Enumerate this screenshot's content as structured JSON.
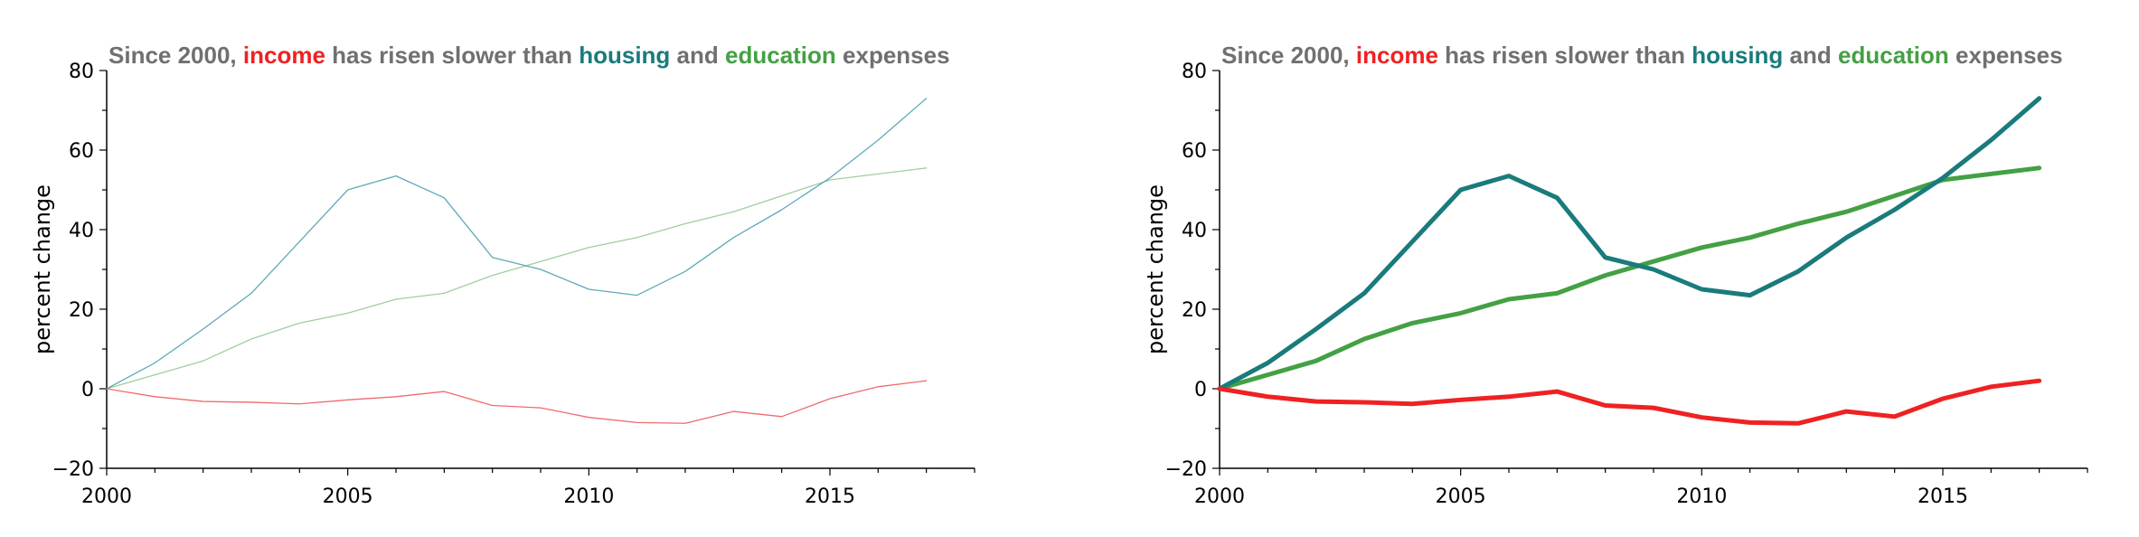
{
  "colors": {
    "title_gray": "#707070",
    "income": "#ee2222",
    "housing": "#1a7b7b",
    "education": "#44a044",
    "housing_thin": "#5fa9b9",
    "education_thin": "#9fcf9f",
    "income_thin": "#ef6b6b"
  },
  "chart_data": [
    {
      "type": "line",
      "title": {
        "prefix": "Since 2000,",
        "income": "income",
        "mid1": "has risen slower than",
        "housing": "housing",
        "mid2": "and",
        "education": "education",
        "suffix": "expenses"
      },
      "xlabel": "",
      "ylabel": "percent change",
      "xlim": [
        2000,
        2018
      ],
      "ylim": [
        -20,
        80
      ],
      "xticks": [
        2000,
        2005,
        2010,
        2015
      ],
      "yticks": [
        -20,
        0,
        20,
        40,
        60,
        80
      ],
      "ytick_labels": [
        "−20",
        "0",
        "20",
        "40",
        "60",
        "80"
      ],
      "legend": "none",
      "line_style": "thin",
      "x": [
        2000,
        2001,
        2002,
        2003,
        2004,
        2005,
        2006,
        2007,
        2008,
        2009,
        2010,
        2011,
        2012,
        2013,
        2014,
        2015,
        2016,
        2017
      ],
      "series": [
        {
          "name": "housing",
          "values": [
            0,
            6.5,
            15,
            24,
            37,
            50,
            53.5,
            48,
            33,
            30,
            25,
            23.5,
            29.5,
            38,
            45,
            53,
            62.5,
            73
          ]
        },
        {
          "name": "education",
          "values": [
            0,
            3.5,
            7,
            12.5,
            16.5,
            19,
            22.5,
            24,
            28.5,
            32,
            35.5,
            38,
            41.5,
            44.5,
            48.5,
            52.5,
            54,
            55.5
          ]
        },
        {
          "name": "income",
          "values": [
            0,
            -2,
            -3.2,
            -3.4,
            -3.8,
            -2.8,
            -2,
            -0.7,
            -4.2,
            -4.8,
            -7.2,
            -8.5,
            -8.7,
            -5.7,
            -7,
            -2.5,
            0.5,
            2
          ]
        }
      ]
    },
    {
      "type": "line",
      "title": {
        "prefix": "Since 2000,",
        "income": "income",
        "mid1": "has risen slower than",
        "housing": "housing",
        "mid2": "and",
        "education": "education",
        "suffix": "expenses"
      },
      "xlabel": "",
      "ylabel": "percent change",
      "xlim": [
        2000,
        2018
      ],
      "ylim": [
        -20,
        80
      ],
      "xticks": [
        2000,
        2005,
        2010,
        2015
      ],
      "yticks": [
        -20,
        0,
        20,
        40,
        60,
        80
      ],
      "ytick_labels": [
        "−20",
        "0",
        "20",
        "40",
        "60",
        "80"
      ],
      "legend": "none",
      "line_style": "thick",
      "x": [
        2000,
        2001,
        2002,
        2003,
        2004,
        2005,
        2006,
        2007,
        2008,
        2009,
        2010,
        2011,
        2012,
        2013,
        2014,
        2015,
        2016,
        2017
      ],
      "series": [
        {
          "name": "housing",
          "values": [
            0,
            6.5,
            15,
            24,
            37,
            50,
            53.5,
            48,
            33,
            30,
            25,
            23.5,
            29.5,
            38,
            45,
            53,
            62.5,
            73
          ]
        },
        {
          "name": "education",
          "values": [
            0,
            3.5,
            7,
            12.5,
            16.5,
            19,
            22.5,
            24,
            28.5,
            32,
            35.5,
            38,
            41.5,
            44.5,
            48.5,
            52.5,
            54,
            55.5
          ]
        },
        {
          "name": "income",
          "values": [
            0,
            -2,
            -3.2,
            -3.4,
            -3.8,
            -2.8,
            -2,
            -0.7,
            -4.2,
            -4.8,
            -7.2,
            -8.5,
            -8.7,
            -5.7,
            -7,
            -2.5,
            0.5,
            2
          ]
        }
      ]
    }
  ]
}
